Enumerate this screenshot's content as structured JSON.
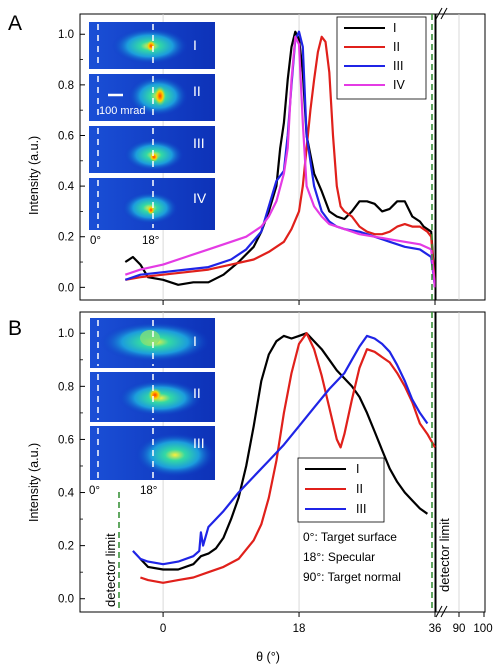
{
  "colors": {
    "I": "#000000",
    "II": "#e0201b",
    "III": "#1f24e6",
    "IV": "#e43be4",
    "detector_line": "#2e8b2e",
    "grid": "#d0d0d0"
  },
  "chart_data": [
    {
      "panel": "A",
      "type": "line",
      "xlabel": "",
      "ylabel": "Intensity (a.u.)",
      "xlim": [
        -11,
        36
      ],
      "ylim": [
        -0.05,
        1.08
      ],
      "x_ticks": [],
      "y_ticks": [
        "0.0",
        "0.2",
        "0.4",
        "0.6",
        "0.8",
        "1.0"
      ],
      "legend": [
        "I",
        "II",
        "III",
        "IV"
      ],
      "legend_position": "top-right",
      "detector_limit_x": 36,
      "inset_labels": [
        "I",
        "II",
        "III",
        "IV"
      ],
      "inset_scale_label": "100 mrad",
      "inset_angle_labels": [
        "0°",
        "18°"
      ],
      "series": [
        {
          "name": "I",
          "points": [
            [
              -5,
              0.1
            ],
            [
              -4,
              0.12
            ],
            [
              -3,
              0.09
            ],
            [
              -2,
              0.04
            ],
            [
              0,
              0.03
            ],
            [
              2,
              0.01
            ],
            [
              4,
              0.02
            ],
            [
              6,
              0.02
            ],
            [
              8,
              0.05
            ],
            [
              10,
              0.1
            ],
            [
              12,
              0.16
            ],
            [
              13,
              0.22
            ],
            [
              14,
              0.3
            ],
            [
              15,
              0.4
            ],
            [
              15.5,
              0.55
            ],
            [
              16,
              0.65
            ],
            [
              16.5,
              0.82
            ],
            [
              17,
              0.95
            ],
            [
              17.5,
              1.01
            ],
            [
              18,
              0.98
            ],
            [
              18.5,
              0.85
            ],
            [
              19,
              0.6
            ],
            [
              20,
              0.45
            ],
            [
              21,
              0.38
            ],
            [
              22,
              0.3
            ],
            [
              23,
              0.28
            ],
            [
              24,
              0.27
            ],
            [
              25,
              0.3
            ],
            [
              26,
              0.34
            ],
            [
              27,
              0.34
            ],
            [
              28,
              0.33
            ],
            [
              29,
              0.3
            ],
            [
              30,
              0.31
            ],
            [
              31,
              0.34
            ],
            [
              32,
              0.34
            ],
            [
              33,
              0.28
            ],
            [
              34,
              0.26
            ],
            [
              34.5,
              0.24
            ],
            [
              35.5,
              0.22
            ],
            [
              36,
              0.0
            ]
          ]
        },
        {
          "name": "II",
          "points": [
            [
              -5,
              0.03
            ],
            [
              -3,
              0.04
            ],
            [
              0,
              0.05
            ],
            [
              3,
              0.06
            ],
            [
              6,
              0.07
            ],
            [
              9,
              0.09
            ],
            [
              12,
              0.11
            ],
            [
              14,
              0.14
            ],
            [
              16,
              0.18
            ],
            [
              17,
              0.23
            ],
            [
              18,
              0.3
            ],
            [
              18.5,
              0.4
            ],
            [
              19,
              0.55
            ],
            [
              19.5,
              0.7
            ],
            [
              20,
              0.82
            ],
            [
              20.5,
              0.93
            ],
            [
              21,
              0.99
            ],
            [
              21.5,
              0.97
            ],
            [
              22,
              0.85
            ],
            [
              22.5,
              0.6
            ],
            [
              23,
              0.4
            ],
            [
              23.5,
              0.32
            ],
            [
              24,
              0.3
            ],
            [
              25,
              0.28
            ],
            [
              26,
              0.24
            ],
            [
              27,
              0.22
            ],
            [
              28,
              0.21
            ],
            [
              29,
              0.21
            ],
            [
              30,
              0.22
            ],
            [
              31,
              0.24
            ],
            [
              32,
              0.25
            ],
            [
              33,
              0.24
            ],
            [
              34,
              0.24
            ],
            [
              35,
              0.22
            ],
            [
              35.5,
              0.2
            ],
            [
              36,
              0.0
            ]
          ]
        },
        {
          "name": "III",
          "points": [
            [
              -5,
              0.03
            ],
            [
              -3,
              0.05
            ],
            [
              0,
              0.06
            ],
            [
              3,
              0.07
            ],
            [
              6,
              0.08
            ],
            [
              9,
              0.11
            ],
            [
              11,
              0.15
            ],
            [
              13,
              0.22
            ],
            [
              14,
              0.32
            ],
            [
              15,
              0.42
            ],
            [
              16,
              0.46
            ],
            [
              16.5,
              0.6
            ],
            [
              17,
              0.8
            ],
            [
              17.5,
              0.98
            ],
            [
              18,
              1.01
            ],
            [
              18.5,
              0.95
            ],
            [
              19,
              0.6
            ],
            [
              20,
              0.4
            ],
            [
              21,
              0.3
            ],
            [
              22,
              0.26
            ],
            [
              23,
              0.24
            ],
            [
              24,
              0.23
            ],
            [
              26,
              0.22
            ],
            [
              28,
              0.2
            ],
            [
              30,
              0.18
            ],
            [
              32,
              0.16
            ],
            [
              34,
              0.15
            ],
            [
              35.5,
              0.12
            ],
            [
              36,
              0.0
            ]
          ]
        },
        {
          "name": "IV",
          "points": [
            [
              -5,
              0.05
            ],
            [
              -3,
              0.07
            ],
            [
              0,
              0.09
            ],
            [
              3,
              0.12
            ],
            [
              6,
              0.15
            ],
            [
              9,
              0.18
            ],
            [
              11,
              0.2
            ],
            [
              13,
              0.24
            ],
            [
              14,
              0.28
            ],
            [
              15,
              0.34
            ],
            [
              16,
              0.45
            ],
            [
              16.5,
              0.55
            ],
            [
              17,
              0.82
            ],
            [
              17.5,
              0.99
            ],
            [
              18,
              0.96
            ],
            [
              18.5,
              0.65
            ],
            [
              19,
              0.4
            ],
            [
              20,
              0.32
            ],
            [
              21,
              0.28
            ],
            [
              22,
              0.25
            ],
            [
              24,
              0.23
            ],
            [
              26,
              0.21
            ],
            [
              28,
              0.2
            ],
            [
              30,
              0.19
            ],
            [
              32,
              0.18
            ],
            [
              34,
              0.17
            ],
            [
              35.5,
              0.15
            ],
            [
              36,
              0.0
            ]
          ]
        }
      ]
    },
    {
      "panel": "B",
      "type": "line",
      "xlabel": "θ (°)",
      "ylabel": "Intensity (a.u.)",
      "xlim": [
        -11,
        36
      ],
      "ylim": [
        -0.05,
        1.08
      ],
      "x_ticks": [
        "0",
        "18",
        "36"
      ],
      "x_ticks_after_break": [
        "90",
        "100"
      ],
      "y_ticks": [
        "0.0",
        "0.2",
        "0.4",
        "0.6",
        "0.8",
        "1.0"
      ],
      "legend": [
        "I",
        "II",
        "III"
      ],
      "legend_position": "center-right",
      "detector_limit_x": [
        -4,
        36
      ],
      "detector_limit_label": "detector limit",
      "inset_labels": [
        "I",
        "II",
        "III"
      ],
      "inset_angle_labels": [
        "0°",
        "18°"
      ],
      "notes": [
        "0°: Target surface",
        "18°: Specular",
        "90°: Target normal"
      ],
      "series": [
        {
          "name": "I",
          "points": [
            [
              -3,
              0.15
            ],
            [
              -2,
              0.12
            ],
            [
              0,
              0.11
            ],
            [
              2,
              0.11
            ],
            [
              4,
              0.13
            ],
            [
              5,
              0.16
            ],
            [
              6,
              0.17
            ],
            [
              7,
              0.19
            ],
            [
              8,
              0.23
            ],
            [
              9,
              0.3
            ],
            [
              10,
              0.38
            ],
            [
              11,
              0.5
            ],
            [
              12,
              0.65
            ],
            [
              13,
              0.82
            ],
            [
              14,
              0.92
            ],
            [
              15,
              0.97
            ],
            [
              16,
              0.99
            ],
            [
              17,
              0.98
            ],
            [
              18,
              0.99
            ],
            [
              19,
              1.0
            ],
            [
              20,
              0.97
            ],
            [
              21,
              0.94
            ],
            [
              22,
              0.9
            ],
            [
              23,
              0.86
            ],
            [
              24,
              0.83
            ],
            [
              25,
              0.8
            ],
            [
              26,
              0.76
            ],
            [
              27,
              0.7
            ],
            [
              28,
              0.63
            ],
            [
              29,
              0.56
            ],
            [
              30,
              0.49
            ],
            [
              31,
              0.44
            ],
            [
              32,
              0.4
            ],
            [
              33,
              0.37
            ],
            [
              34,
              0.34
            ],
            [
              35,
              0.32
            ]
          ]
        },
        {
          "name": "II",
          "points": [
            [
              -3,
              0.08
            ],
            [
              -2,
              0.07
            ],
            [
              0,
              0.06
            ],
            [
              2,
              0.07
            ],
            [
              4,
              0.08
            ],
            [
              6,
              0.1
            ],
            [
              8,
              0.12
            ],
            [
              10,
              0.15
            ],
            [
              12,
              0.22
            ],
            [
              13,
              0.28
            ],
            [
              14,
              0.38
            ],
            [
              15,
              0.52
            ],
            [
              16,
              0.7
            ],
            [
              17,
              0.85
            ],
            [
              18,
              0.96
            ],
            [
              19,
              1.0
            ],
            [
              20,
              0.94
            ],
            [
              21,
              0.84
            ],
            [
              22,
              0.72
            ],
            [
              23,
              0.6
            ],
            [
              23.5,
              0.57
            ],
            [
              24,
              0.62
            ],
            [
              25,
              0.75
            ],
            [
              26,
              0.87
            ],
            [
              27,
              0.94
            ],
            [
              28,
              0.93
            ],
            [
              29,
              0.91
            ],
            [
              30,
              0.89
            ],
            [
              31,
              0.85
            ],
            [
              32,
              0.8
            ],
            [
              33,
              0.74
            ],
            [
              34,
              0.66
            ],
            [
              35,
              0.62
            ],
            [
              36,
              0.57
            ]
          ]
        },
        {
          "name": "III",
          "points": [
            [
              -4,
              0.18
            ],
            [
              -3,
              0.15
            ],
            [
              -2,
              0.14
            ],
            [
              0,
              0.13
            ],
            [
              2,
              0.14
            ],
            [
              4,
              0.16
            ],
            [
              4.8,
              0.18
            ],
            [
              5,
              0.25
            ],
            [
              5.3,
              0.2
            ],
            [
              6,
              0.27
            ],
            [
              8,
              0.33
            ],
            [
              10,
              0.4
            ],
            [
              12,
              0.46
            ],
            [
              14,
              0.52
            ],
            [
              16,
              0.58
            ],
            [
              18,
              0.65
            ],
            [
              20,
              0.72
            ],
            [
              22,
              0.79
            ],
            [
              24,
              0.85
            ],
            [
              25,
              0.9
            ],
            [
              26,
              0.95
            ],
            [
              27,
              0.99
            ],
            [
              28,
              0.98
            ],
            [
              29,
              0.96
            ],
            [
              30,
              0.93
            ],
            [
              31,
              0.88
            ],
            [
              32,
              0.82
            ],
            [
              33,
              0.75
            ],
            [
              34,
              0.7
            ],
            [
              35,
              0.66
            ]
          ]
        }
      ]
    }
  ]
}
